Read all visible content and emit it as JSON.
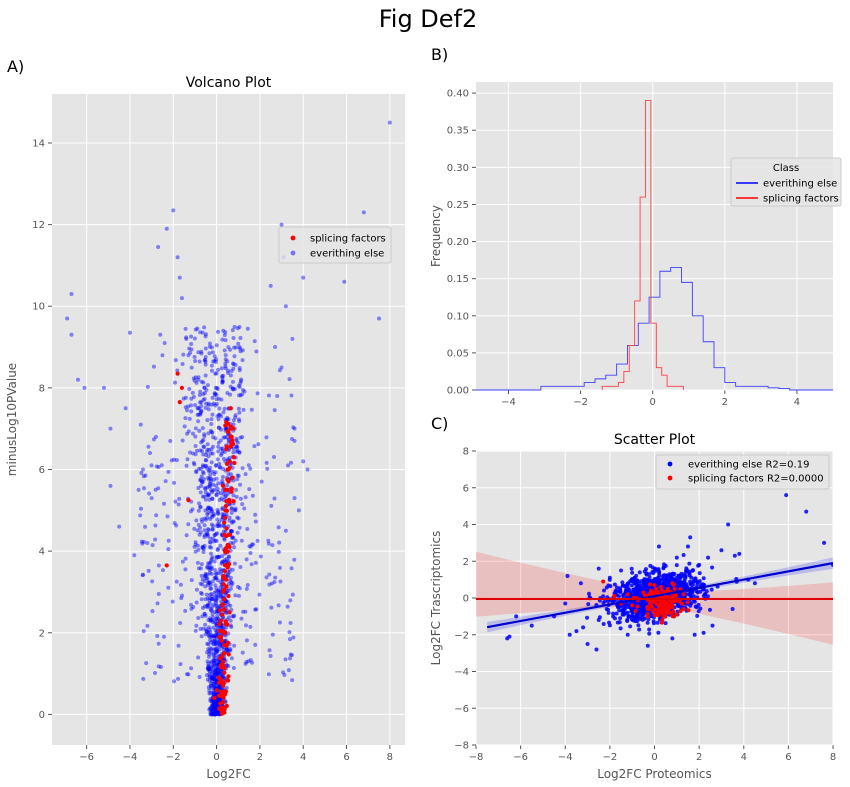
{
  "figure": {
    "title": "Fig Def2"
  },
  "colors": {
    "panel_bg": "#e5e5e5",
    "grid": "#ffffff",
    "tick_text": "#555555",
    "blue": "#0000ff",
    "red": "#ff0000",
    "text": "#000000"
  },
  "chart_data": [
    {
      "panel_label": "A)",
      "type": "scatter",
      "title": "Volcano Plot",
      "xlabel": "Log2FC",
      "ylabel": "minusLog10PValue",
      "xlim": [
        -7.6,
        8.7
      ],
      "ylim": [
        -0.75,
        15.2
      ],
      "xticks": [
        -6,
        -4,
        -2,
        0,
        2,
        4,
        6,
        8
      ],
      "yticks": [
        0,
        2,
        4,
        6,
        8,
        10,
        12,
        14
      ],
      "grid": true,
      "legend": {
        "position": "upper-right",
        "entries": [
          "splicing factors",
          "everithing else"
        ]
      },
      "series": [
        {
          "name": "splicing factors",
          "color": "#ff0000",
          "points": [
            [
              -2.3,
              3.65
            ],
            [
              -1.8,
              8.35
            ],
            [
              -1.6,
              8.0
            ],
            [
              -1.7,
              7.65
            ],
            [
              -1.3,
              5.25
            ],
            [
              0.5,
              2.2
            ],
            [
              0.45,
              4.0
            ],
            [
              0.55,
              6.0
            ],
            [
              0.65,
              7.5
            ],
            [
              0.8,
              6.3
            ],
            [
              0.3,
              3.0
            ],
            [
              0.4,
              5.0
            ],
            [
              0.35,
              1.5
            ],
            [
              0.25,
              0.8
            ],
            [
              0.6,
              2.5
            ],
            [
              0.45,
              3.3
            ],
            [
              0.5,
              5.5
            ],
            [
              0.55,
              4.4
            ],
            [
              0.7,
              6.8
            ],
            [
              0.3,
              2.7
            ],
            [
              0.2,
              1.2
            ],
            [
              0.4,
              0.5
            ],
            [
              0.35,
              4.7
            ],
            [
              0.5,
              3.6
            ],
            [
              0.6,
              5.2
            ],
            [
              0.65,
              7.0
            ],
            [
              0.75,
              5.8
            ],
            [
              0.4,
              2.0
            ],
            [
              0.25,
              1.8
            ],
            [
              0.3,
              0.3
            ],
            [
              0.55,
              2.9
            ],
            [
              0.45,
              6.5
            ],
            [
              -0.1,
              0.4
            ],
            [
              0.1,
              0.9
            ],
            [
              0.2,
              2.3
            ],
            [
              0.6,
              4.1
            ]
          ]
        },
        {
          "name": "everithing else",
          "color": "#0000ff",
          "scatter_outliers": [
            [
              -6.7,
              10.3
            ],
            [
              -6.9,
              9.7
            ],
            [
              -6.7,
              9.3
            ],
            [
              -6.4,
              8.2
            ],
            [
              -6.1,
              8.0
            ],
            [
              -5.2,
              8.0
            ],
            [
              -4.9,
              7.0
            ],
            [
              -4.9,
              5.6
            ],
            [
              -4.5,
              4.6
            ],
            [
              -4.0,
              9.35
            ],
            [
              -3.8,
              3.9
            ],
            [
              -3.5,
              7.1
            ],
            [
              -3.4,
              6.0
            ],
            [
              -3.0,
              5.3
            ],
            [
              -2.7,
              11.45
            ],
            [
              -2.6,
              9.3
            ],
            [
              -2.5,
              8.8
            ],
            [
              -2.4,
              9.1
            ],
            [
              -2.3,
              11.9
            ],
            [
              -2.0,
              12.35
            ],
            [
              -1.8,
              11.2
            ],
            [
              -1.7,
              10.7
            ],
            [
              -1.6,
              10.2
            ],
            [
              -1.4,
              9.2
            ],
            [
              -1.3,
              8.8
            ],
            [
              3.0,
              12.0
            ],
            [
              3.1,
              11.2
            ],
            [
              3.2,
              10.0
            ],
            [
              3.5,
              9.2
            ],
            [
              3.6,
              7.0
            ],
            [
              3.6,
              6.7
            ],
            [
              3.6,
              5.3
            ],
            [
              3.2,
              4.5
            ],
            [
              4.0,
              10.7
            ],
            [
              4.0,
              6.2
            ],
            [
              5.9,
              10.6
            ],
            [
              6.8,
              12.3
            ],
            [
              7.5,
              9.7
            ],
            [
              8.0,
              14.5
            ],
            [
              3.0,
              8.5
            ],
            [
              2.7,
              9.0
            ],
            [
              4.2,
              6.0
            ],
            [
              3.8,
              5.0
            ],
            [
              -3.2,
              4.2
            ],
            [
              -3.6,
              5.5
            ],
            [
              -4.2,
              7.5
            ],
            [
              -2.8,
              6.8
            ],
            [
              2.5,
              10.5
            ],
            [
              2.8,
              7.8
            ],
            [
              3.3,
              6.1
            ]
          ],
          "volcano_arms": {
            "left_peak_x": -1.0,
            "right_peak_x": 1.0,
            "max_y": 11.0
          }
        }
      ]
    },
    {
      "panel_label": "B)",
      "type": "histogram",
      "title": "",
      "xlabel": "",
      "ylabel": "Frequency",
      "xlim": [
        -4.9,
        5.0
      ],
      "ylim": [
        0,
        0.415
      ],
      "xticks": [
        -4,
        -2,
        0,
        2,
        4
      ],
      "yticks": [
        0.0,
        0.05,
        0.1,
        0.15,
        0.2,
        0.25,
        0.3,
        0.35,
        0.4
      ],
      "grid": true,
      "legend": {
        "position": "right",
        "title": "Class",
        "entries": [
          "everithing else",
          "splicing factors"
        ]
      },
      "series": [
        {
          "name": "everithing else",
          "color": "#4040ff",
          "bin_width": 0.3,
          "bin_start": -4.9,
          "values": [
            0,
            0,
            0,
            0,
            0,
            0,
            0.005,
            0.005,
            0.005,
            0.005,
            0.01,
            0.015,
            0.02,
            0.035,
            0.06,
            0.09,
            0.125,
            0.16,
            0.165,
            0.145,
            0.1,
            0.065,
            0.03,
            0.01,
            0.005,
            0.005,
            0.005,
            0.003,
            0.002,
            0,
            0,
            0,
            0
          ]
        },
        {
          "name": "splicing factors",
          "color": "#ff4040",
          "bin_width": 0.15,
          "bin_start": -1.4,
          "values": [
            0.005,
            0.005,
            0.005,
            0.01,
            0.025,
            0.06,
            0.12,
            0.26,
            0.39,
            0.09,
            0.03,
            0.02,
            0.005,
            0.005,
            0.005
          ]
        }
      ]
    },
    {
      "panel_label": "C)",
      "type": "scatter",
      "title": "Scatter Plot",
      "xlabel": "Log2FC Proteomics",
      "ylabel": "Log2FC Trascriptomics",
      "xlim": [
        -8,
        8
      ],
      "ylim": [
        -8,
        8
      ],
      "xticks": [
        -8,
        -6,
        -4,
        -2,
        0,
        2,
        4,
        6,
        8
      ],
      "yticks": [
        -8,
        -6,
        -4,
        -2,
        0,
        2,
        4,
        6,
        8
      ],
      "grid": true,
      "legend": {
        "position": "upper-right",
        "entries": [
          "everithing else R2=0.19",
          "splicing factors R2=0.0000"
        ]
      },
      "series": [
        {
          "name": "everithing else R2=0.19",
          "color": "#0000ff",
          "fit": {
            "slope": 0.225,
            "intercept": 0.1,
            "x_range": [
              -7.5,
              8.0
            ]
          },
          "outliers": [
            [
              -6.6,
              -2.2
            ],
            [
              -6.5,
              -2.1
            ],
            [
              -6.2,
              -1.0
            ],
            [
              -5.5,
              -1.5
            ],
            [
              -4.5,
              -1.0
            ],
            [
              -4.0,
              -0.3
            ],
            [
              -3.8,
              -2.0
            ],
            [
              -3.5,
              -1.8
            ],
            [
              -3.2,
              -1.6
            ],
            [
              -3.0,
              -2.5
            ],
            [
              -2.6,
              -2.8
            ],
            [
              -2.5,
              -1.2
            ],
            [
              -3.9,
              1.2
            ],
            [
              -3.3,
              0.8
            ],
            [
              -2.5,
              1.6
            ],
            [
              -2.0,
              1.1
            ],
            [
              2.4,
              2.2
            ],
            [
              2.6,
              -1.5
            ],
            [
              3.0,
              2.6
            ],
            [
              3.3,
              4.0
            ],
            [
              3.6,
              2.3
            ],
            [
              3.8,
              2.4
            ],
            [
              3.5,
              -0.6
            ],
            [
              4.2,
              1.0
            ],
            [
              4.5,
              0.8
            ],
            [
              5.9,
              5.6
            ],
            [
              6.8,
              4.7
            ],
            [
              7.6,
              3.0
            ],
            [
              8.0,
              1.8
            ],
            [
              1.5,
              2.8
            ],
            [
              0.2,
              2.8
            ],
            [
              1.8,
              -2.0
            ],
            [
              2.2,
              -1.9
            ],
            [
              -1.2,
              -2.0
            ],
            [
              -0.3,
              -2.6
            ],
            [
              0.8,
              -2.2
            ],
            [
              1.6,
              3.3
            ],
            [
              1.0,
              2.2
            ],
            [
              2.0,
              1.8
            ],
            [
              -1.5,
              1.5
            ]
          ]
        },
        {
          "name": "splicing factors R2=0.0000",
          "color": "#ff0000",
          "fit": {
            "slope": 0.0,
            "intercept": -0.05,
            "x_range": [
              -8.0,
              8.0
            ]
          },
          "points": [
            [
              -2.3,
              0.9
            ],
            [
              -1.8,
              0.1
            ],
            [
              -1.5,
              -0.3
            ],
            [
              -1.2,
              0.2
            ],
            [
              -1.0,
              -0.4
            ],
            [
              -0.8,
              0.0
            ],
            [
              -0.5,
              0.3
            ],
            [
              -0.3,
              -0.6
            ],
            [
              0.0,
              -0.2
            ],
            [
              0.1,
              0.4
            ],
            [
              0.2,
              -0.8
            ],
            [
              0.3,
              -0.5
            ],
            [
              0.3,
              0.6
            ],
            [
              0.4,
              -1.0
            ],
            [
              0.5,
              -0.3
            ],
            [
              0.5,
              0.2
            ],
            [
              0.6,
              -0.7
            ],
            [
              0.7,
              0.0
            ],
            [
              0.8,
              -0.5
            ],
            [
              0.9,
              0.3
            ],
            [
              1.0,
              -0.9
            ],
            [
              1.1,
              -0.2
            ],
            [
              0.2,
              0.1
            ],
            [
              0.4,
              -0.1
            ],
            [
              0.6,
              0.5
            ],
            [
              -0.2,
              -0.3
            ],
            [
              0.0,
              0.7
            ],
            [
              0.8,
              0.8
            ],
            [
              1.3,
              0.2
            ],
            [
              0.35,
              -1.2
            ]
          ]
        }
      ]
    }
  ]
}
